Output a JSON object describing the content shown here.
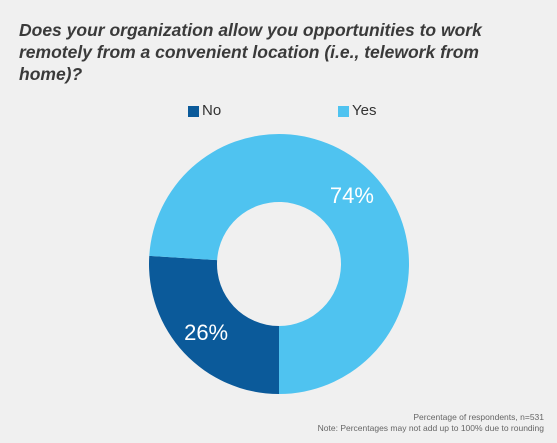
{
  "title": "Does your organization allow you opportunities to work remotely from a convenient location (i.e., telework from home)?",
  "legend": [
    {
      "label": "No",
      "color": "#0b5a9a"
    },
    {
      "label": "Yes",
      "color": "#4fc3f0"
    }
  ],
  "chart_data": {
    "type": "pie",
    "title": "Does your organization allow you opportunities to work remotely from a convenient location (i.e., telework from home)?",
    "categories": [
      "No",
      "Yes"
    ],
    "values": [
      26,
      74
    ],
    "labels": [
      "26%",
      "74%"
    ],
    "colors": [
      "#0b5a9a",
      "#4fc3f0"
    ],
    "legend": "top-center"
  },
  "notes": {
    "line1": "Percentage of respondents, n=531",
    "line2": "Note: Percentages may not add up to 100% due to rounding"
  }
}
